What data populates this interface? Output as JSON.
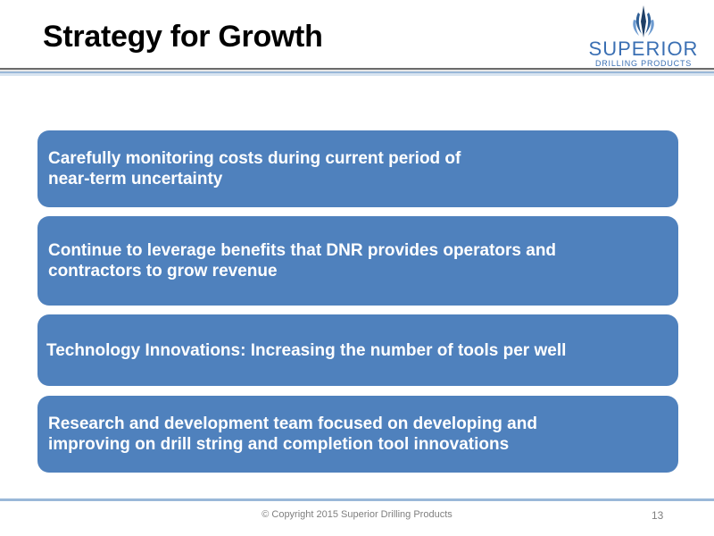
{
  "header": {
    "title": "Strategy for Growth"
  },
  "logo": {
    "name": "SUPERIOR",
    "tagline": "DRILLING PRODUCTS",
    "icon": "drill-bit-flame-icon",
    "color": "#3a6fb3"
  },
  "main": {
    "bullets": [
      {
        "line1": "Carefully monitoring costs during current period of",
        "line2": "near-term uncertainty"
      },
      {
        "line1": "Continue to leverage benefits that DNR provides operators and",
        "line2": "contractors to grow revenue"
      },
      {
        "line1": "Technology Innovations:  Increasing the number of tools per well",
        "line2": ""
      },
      {
        "line1": "Research and development team focused on developing and",
        "line2": "improving on drill string and completion tool innovations"
      }
    ],
    "box_color": "#4f81bd"
  },
  "footer": {
    "copyright": "© Copyright 2015 Superior Drilling Products",
    "page_number": "13"
  }
}
